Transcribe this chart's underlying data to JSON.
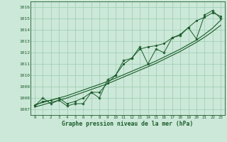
{
  "xlabel": "Graphe pression niveau de la mer (hPa)",
  "x_ticks": [
    0,
    1,
    2,
    3,
    4,
    5,
    6,
    7,
    8,
    9,
    10,
    11,
    12,
    13,
    14,
    15,
    16,
    17,
    18,
    19,
    20,
    21,
    22,
    23
  ],
  "ylim": [
    1006.5,
    1016.5
  ],
  "xlim": [
    -0.5,
    23.5
  ],
  "yticks": [
    1007,
    1008,
    1009,
    1010,
    1011,
    1012,
    1013,
    1014,
    1015,
    1016
  ],
  "bg_color": "#cce8d8",
  "grid_color": "#99ccb0",
  "line_color": "#1a5c2a",
  "main_data": [
    1007.3,
    1008.0,
    1007.5,
    1007.8,
    1007.3,
    1007.5,
    1007.5,
    1008.5,
    1008.0,
    1009.6,
    1010.0,
    1011.3,
    1011.5,
    1012.5,
    1011.0,
    1012.3,
    1012.0,
    1013.3,
    1013.5,
    1014.2,
    1013.2,
    1015.3,
    1015.7,
    1015.0
  ],
  "line2_data": [
    1007.3,
    1007.7,
    1007.8,
    1008.0,
    1007.5,
    1007.7,
    1008.0,
    1008.5,
    1008.5,
    1009.3,
    1010.0,
    1011.0,
    1011.5,
    1012.3,
    1012.5,
    1012.6,
    1012.8,
    1013.3,
    1013.6,
    1014.2,
    1014.8,
    1015.1,
    1015.5,
    1015.2
  ],
  "smooth1": [
    1007.2,
    1007.4,
    1007.6,
    1007.8,
    1008.0,
    1008.25,
    1008.5,
    1008.75,
    1009.0,
    1009.25,
    1009.55,
    1009.85,
    1010.15,
    1010.45,
    1010.75,
    1011.05,
    1011.4,
    1011.75,
    1012.1,
    1012.5,
    1012.9,
    1013.35,
    1013.85,
    1014.4
  ],
  "smooth2": [
    1007.4,
    1007.6,
    1007.8,
    1008.0,
    1008.2,
    1008.45,
    1008.7,
    1008.95,
    1009.2,
    1009.45,
    1009.75,
    1010.05,
    1010.35,
    1010.65,
    1010.95,
    1011.25,
    1011.6,
    1011.95,
    1012.3,
    1012.7,
    1013.1,
    1013.6,
    1014.15,
    1014.85
  ]
}
